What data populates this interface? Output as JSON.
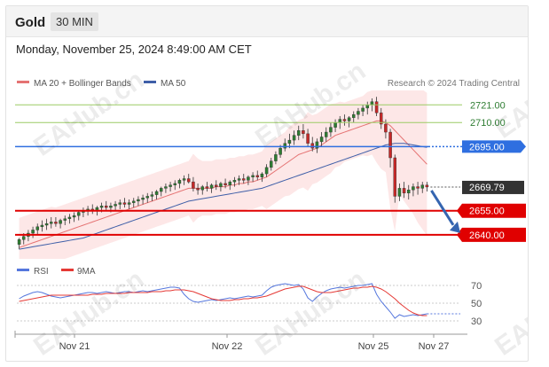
{
  "header": {
    "title": "Gold",
    "timeframe": "30 MIN",
    "datetime": "Monday, November 25, 2024 8:49:00 AM CET"
  },
  "legend": {
    "ma_bb_label": "MA 20 + Bollinger Bands",
    "ma50_label": "MA 50",
    "credit": "Research © 2024 Trading Central"
  },
  "rsi_legend": {
    "rsi_label": "RSI",
    "ma9_label": "9MA"
  },
  "watermark": "EAHub.cn",
  "colors": {
    "bullish": "#2e7d32",
    "bearish": "#c62828",
    "ma20": "#e57373",
    "ma50": "#3f5fa8",
    "band_fill": "#fde3e3",
    "resistance": "#9ccc65",
    "pivot_blue": "#2f6fe0",
    "support": "#e00000",
    "current": "#333333",
    "rsi": "#5577dd",
    "rsi_ma": "#e53935",
    "arrow": "#3565b0"
  },
  "chart_data": [
    {
      "type": "candlestick",
      "title": "Gold",
      "timeframe": "30 MIN",
      "x_ticks": [
        "Nov 21",
        "Nov 22",
        "Nov 25",
        "Nov 27"
      ],
      "ylim": [
        2625,
        2730
      ],
      "levels": [
        {
          "label": "2721.00",
          "value": 2721.0,
          "kind": "resistance"
        },
        {
          "label": "2710.00",
          "value": 2710.0,
          "kind": "resistance"
        },
        {
          "label": "2695.00",
          "value": 2695.0,
          "kind": "pivot"
        },
        {
          "label": "2669.79",
          "value": 2669.79,
          "kind": "current"
        },
        {
          "label": "2655.00",
          "value": 2655.0,
          "kind": "support"
        },
        {
          "label": "2640.00",
          "value": 2640.0,
          "kind": "support"
        }
      ],
      "candles": [
        [
          2634,
          2638,
          2631,
          2637
        ],
        [
          2637,
          2641,
          2634,
          2639
        ],
        [
          2639,
          2643,
          2636,
          2641
        ],
        [
          2641,
          2645,
          2638,
          2643
        ],
        [
          2643,
          2647,
          2640,
          2645
        ],
        [
          2645,
          2649,
          2642,
          2646
        ],
        [
          2646,
          2650,
          2643,
          2647
        ],
        [
          2647,
          2651,
          2644,
          2648
        ],
        [
          2648,
          2651,
          2645,
          2647
        ],
        [
          2647,
          2650,
          2644,
          2649
        ],
        [
          2649,
          2652,
          2646,
          2650
        ],
        [
          2650,
          2653,
          2647,
          2651
        ],
        [
          2651,
          2654,
          2648,
          2652
        ],
        [
          2652,
          2655,
          2649,
          2654
        ],
        [
          2654,
          2657,
          2651,
          2655
        ],
        [
          2655,
          2658,
          2652,
          2656
        ],
        [
          2656,
          2659,
          2653,
          2655
        ],
        [
          2655,
          2658,
          2652,
          2657
        ],
        [
          2657,
          2660,
          2654,
          2658
        ],
        [
          2658,
          2661,
          2655,
          2657
        ],
        [
          2657,
          2660,
          2654,
          2658
        ],
        [
          2658,
          2661,
          2655,
          2659
        ],
        [
          2659,
          2662,
          2656,
          2660
        ],
        [
          2660,
          2663,
          2657,
          2659
        ],
        [
          2659,
          2662,
          2656,
          2660
        ],
        [
          2660,
          2663,
          2657,
          2661
        ],
        [
          2661,
          2664,
          2658,
          2662
        ],
        [
          2662,
          2665,
          2659,
          2663
        ],
        [
          2663,
          2666,
          2660,
          2664
        ],
        [
          2664,
          2667,
          2661,
          2665
        ],
        [
          2665,
          2668,
          2662,
          2667
        ],
        [
          2667,
          2670,
          2664,
          2669
        ],
        [
          2669,
          2672,
          2666,
          2670
        ],
        [
          2670,
          2673,
          2667,
          2671
        ],
        [
          2671,
          2674,
          2668,
          2672
        ],
        [
          2672,
          2675,
          2669,
          2674
        ],
        [
          2674,
          2677,
          2671,
          2675
        ],
        [
          2675,
          2678,
          2672,
          2673
        ],
        [
          2673,
          2676,
          2667,
          2669
        ],
        [
          2669,
          2672,
          2665,
          2668
        ],
        [
          2668,
          2671,
          2665,
          2670
        ],
        [
          2670,
          2673,
          2667,
          2669
        ],
        [
          2669,
          2672,
          2666,
          2671
        ],
        [
          2671,
          2674,
          2668,
          2670
        ],
        [
          2670,
          2673,
          2667,
          2672
        ],
        [
          2672,
          2675,
          2669,
          2671
        ],
        [
          2671,
          2674,
          2668,
          2673
        ],
        [
          2673,
          2676,
          2670,
          2674
        ],
        [
          2674,
          2677,
          2671,
          2675
        ],
        [
          2675,
          2678,
          2672,
          2674
        ],
        [
          2674,
          2677,
          2671,
          2676
        ],
        [
          2676,
          2679,
          2673,
          2677
        ],
        [
          2677,
          2680,
          2674,
          2676
        ],
        [
          2676,
          2679,
          2673,
          2678
        ],
        [
          2678,
          2684,
          2676,
          2682
        ],
        [
          2682,
          2688,
          2680,
          2686
        ],
        [
          2686,
          2692,
          2684,
          2690
        ],
        [
          2690,
          2696,
          2688,
          2694
        ],
        [
          2694,
          2700,
          2692,
          2697
        ],
        [
          2697,
          2703,
          2694,
          2699
        ],
        [
          2699,
          2705,
          2696,
          2702
        ],
        [
          2702,
          2708,
          2699,
          2705
        ],
        [
          2705,
          2709,
          2700,
          2703
        ],
        [
          2703,
          2706,
          2695,
          2697
        ],
        [
          2697,
          2701,
          2692,
          2694
        ],
        [
          2694,
          2700,
          2691,
          2698
        ],
        [
          2698,
          2704,
          2695,
          2701
        ],
        [
          2701,
          2707,
          2698,
          2704
        ],
        [
          2704,
          2710,
          2701,
          2707
        ],
        [
          2707,
          2712,
          2704,
          2710
        ],
        [
          2710,
          2714,
          2706,
          2712
        ],
        [
          2712,
          2715,
          2708,
          2711
        ],
        [
          2711,
          2714,
          2707,
          2713
        ],
        [
          2713,
          2717,
          2710,
          2715
        ],
        [
          2715,
          2719,
          2712,
          2717
        ],
        [
          2717,
          2721,
          2714,
          2719
        ],
        [
          2719,
          2723,
          2715,
          2721
        ],
        [
          2721,
          2725,
          2717,
          2723
        ],
        [
          2723,
          2726,
          2714,
          2716
        ],
        [
          2716,
          2719,
          2706,
          2709
        ],
        [
          2709,
          2712,
          2700,
          2704
        ],
        [
          2704,
          2706,
          2682,
          2688
        ],
        [
          2688,
          2690,
          2660,
          2664
        ],
        [
          2664,
          2672,
          2661,
          2669
        ],
        [
          2669,
          2673,
          2663,
          2666
        ],
        [
          2666,
          2671,
          2662,
          2668
        ],
        [
          2668,
          2672,
          2664,
          2670
        ],
        [
          2670,
          2673,
          2665,
          2669
        ],
        [
          2669,
          2673,
          2666,
          2671
        ],
        [
          2671,
          2673,
          2667,
          2669.79
        ]
      ],
      "ma20": [
        2632,
        2633,
        2634,
        2635,
        2636,
        2637,
        2638,
        2639,
        2640,
        2641,
        2642,
        2643,
        2644,
        2645,
        2646,
        2647,
        2648,
        2649,
        2650,
        2651,
        2652,
        2653,
        2654,
        2655,
        2656,
        2657,
        2658,
        2659,
        2660,
        2661,
        2662,
        2663,
        2664,
        2665,
        2666,
        2667,
        2668,
        2669,
        2669,
        2669,
        2669,
        2669,
        2669,
        2670,
        2670,
        2670,
        2671,
        2671,
        2672,
        2672,
        2673,
        2673,
        2674,
        2675,
        2676,
        2678,
        2680,
        2682,
        2684,
        2686,
        2688,
        2690,
        2691,
        2692,
        2693,
        2694,
        2696,
        2698,
        2700,
        2702,
        2703,
        2704,
        2705,
        2706,
        2707,
        2708,
        2709,
        2710,
        2711,
        2711,
        2710,
        2708,
        2705,
        2702,
        2699,
        2696,
        2693,
        2690,
        2687,
        2684
      ],
      "ma50": [
        2631,
        2631.5,
        2632,
        2632.5,
        2633,
        2633.5,
        2634,
        2634.5,
        2635,
        2635.5,
        2636,
        2636.5,
        2637,
        2637.5,
        2638,
        2639,
        2640,
        2641,
        2642,
        2643,
        2644,
        2645,
        2646,
        2647,
        2648,
        2649,
        2650,
        2651,
        2652,
        2653,
        2654,
        2655,
        2656,
        2657,
        2658,
        2659,
        2660,
        2661,
        2661.5,
        2662,
        2662.5,
        2663,
        2663.5,
        2664,
        2664.5,
        2665,
        2665.5,
        2666,
        2666.5,
        2667,
        2667.5,
        2668,
        2668.5,
        2669,
        2670,
        2671,
        2672,
        2673,
        2674,
        2675,
        2676,
        2677,
        2678,
        2679,
        2680,
        2681,
        2682,
        2683,
        2684,
        2685,
        2686,
        2687,
        2688,
        2689,
        2690,
        2691,
        2692,
        2693,
        2694,
        2695,
        2696,
        2696.5,
        2697,
        2697,
        2697,
        2696.5,
        2696,
        2695.5,
        2695,
        2694.5
      ]
    },
    {
      "type": "line",
      "title": "RSI",
      "ylim": [
        20,
        80
      ],
      "y_ticks": [
        30,
        50,
        70
      ],
      "series": [
        {
          "name": "RSI",
          "values": [
            55,
            58,
            60,
            62,
            63,
            62,
            60,
            58,
            57,
            56,
            57,
            58,
            59,
            60,
            61,
            62,
            62,
            61,
            62,
            63,
            62,
            61,
            62,
            63,
            63,
            62,
            63,
            64,
            63,
            64,
            65,
            66,
            67,
            68,
            68,
            67,
            60,
            55,
            52,
            51,
            52,
            53,
            54,
            53,
            54,
            55,
            56,
            55,
            56,
            57,
            58,
            57,
            58,
            59,
            64,
            68,
            70,
            71,
            72,
            71,
            70,
            71,
            66,
            56,
            52,
            57,
            61,
            64,
            66,
            67,
            68,
            67,
            68,
            69,
            70,
            70,
            71,
            72,
            60,
            52,
            46,
            40,
            33,
            37,
            35,
            36,
            37,
            36,
            37,
            38
          ]
        },
        {
          "name": "9MA",
          "values": [
            52,
            53,
            54,
            55,
            56,
            57,
            58,
            59,
            59,
            59,
            59,
            59,
            59,
            59,
            59,
            59,
            60,
            60,
            60,
            61,
            61,
            61,
            61,
            61,
            62,
            62,
            62,
            62,
            62,
            63,
            63,
            63,
            64,
            64,
            65,
            65,
            65,
            64,
            63,
            61,
            59,
            57,
            55,
            54,
            53,
            53,
            53,
            54,
            54,
            55,
            55,
            56,
            56,
            57,
            58,
            60,
            62,
            64,
            66,
            67,
            68,
            69,
            69,
            67,
            65,
            63,
            62,
            62,
            62,
            63,
            64,
            65,
            66,
            67,
            67,
            68,
            68,
            69,
            68,
            66,
            63,
            59,
            55,
            50,
            46,
            42,
            39,
            37,
            36,
            36
          ]
        }
      ]
    }
  ]
}
